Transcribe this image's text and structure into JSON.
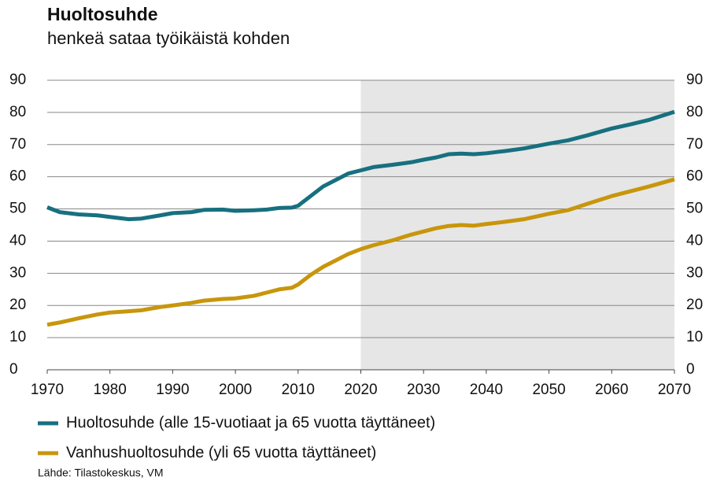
{
  "chart_data": {
    "type": "line",
    "title": "Huoltosuhde",
    "subtitle": "henkeä sataa työikäistä kohden",
    "source": "Lähde: Tilastokeskus, VM",
    "x": [
      1970,
      1972,
      1975,
      1978,
      1980,
      1983,
      1985,
      1988,
      1990,
      1993,
      1995,
      1998,
      2000,
      2003,
      2005,
      2007,
      2009,
      2010,
      2012,
      2014,
      2016,
      2018,
      2020,
      2022,
      2025,
      2028,
      2030,
      2032,
      2034,
      2036,
      2038,
      2040,
      2043,
      2046,
      2050,
      2053,
      2056,
      2060,
      2063,
      2066,
      2070
    ],
    "series": [
      {
        "name": "Huoltosuhde (alle 15-vuotiaat ja 65 vuotta täyttäneet)",
        "color": "#17707f",
        "values": [
          50.5,
          49,
          48.3,
          48,
          47.5,
          46.8,
          47,
          48,
          48.7,
          49,
          49.7,
          49.8,
          49.4,
          49.6,
          49.8,
          50.3,
          50.4,
          51,
          54,
          57,
          59,
          61,
          62,
          63,
          63.7,
          64.5,
          65.3,
          66,
          67,
          67.2,
          67,
          67.3,
          68,
          68.8,
          70.3,
          71.3,
          72.8,
          75,
          76.3,
          77.7,
          80.2
        ]
      },
      {
        "name": "Vanhushuoltosuhde (yli 65 vuotta täyttäneet)",
        "color": "#c8960c",
        "values": [
          14,
          14.7,
          16,
          17.2,
          17.8,
          18.2,
          18.5,
          19.5,
          20,
          20.8,
          21.5,
          22,
          22.2,
          23,
          24,
          25,
          25.5,
          26.5,
          29.5,
          32,
          34,
          36,
          37.5,
          38.7,
          40.2,
          42,
          43,
          44,
          44.7,
          45,
          44.8,
          45.3,
          46,
          46.8,
          48.5,
          49.6,
          51.5,
          54,
          55.5,
          57,
          59.2
        ]
      }
    ],
    "xlim": [
      1970,
      2070
    ],
    "xticks": [
      1970,
      1980,
      1990,
      2000,
      2010,
      2020,
      2030,
      2040,
      2050,
      2060,
      2070
    ],
    "ylim": [
      0,
      90
    ],
    "yticks": [
      0,
      10,
      20,
      30,
      40,
      50,
      60,
      70,
      80,
      90
    ],
    "shade_xlim": [
      2020,
      2070
    ],
    "shade_color": "#e6e6e6",
    "grid": true
  }
}
